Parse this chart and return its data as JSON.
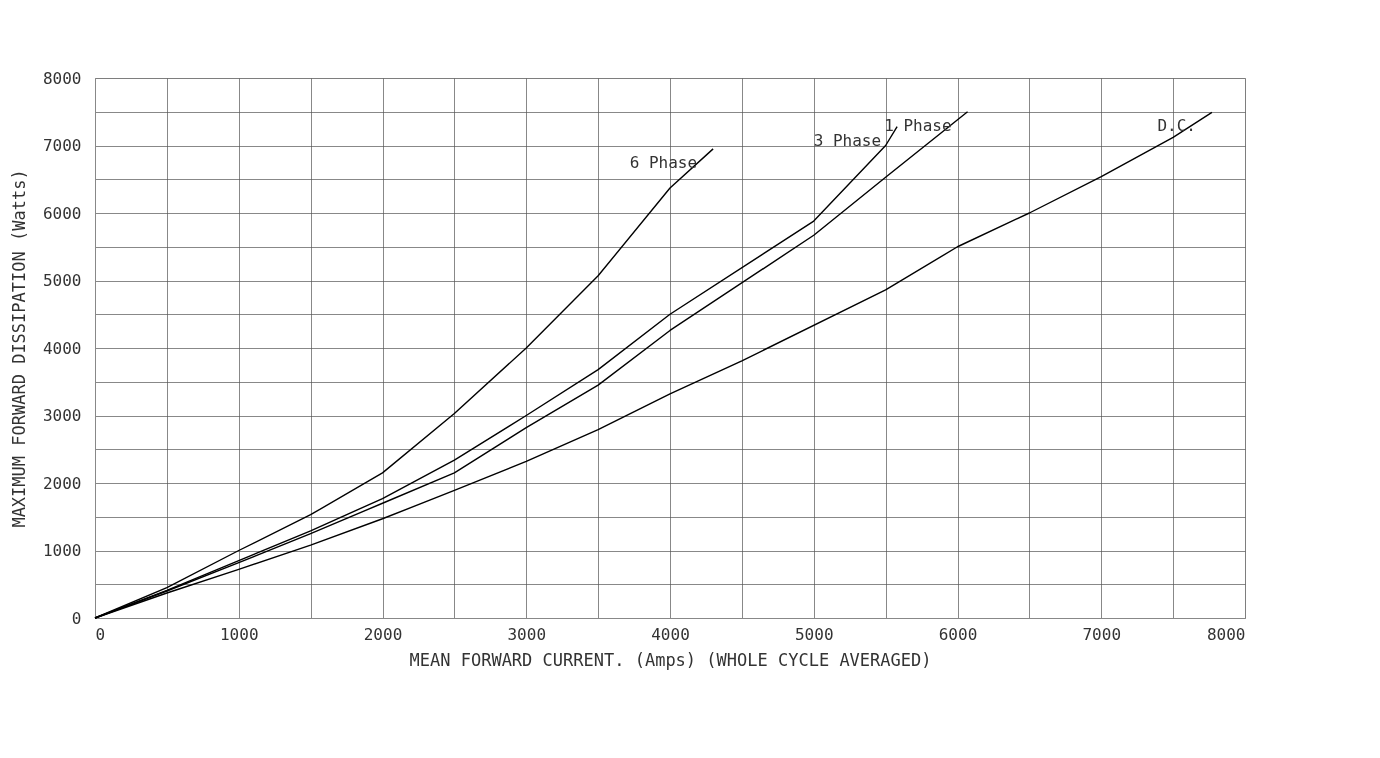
{
  "chart_data": {
    "type": "line",
    "xlabel": "MEAN FORWARD CURRENT.  (Amps)   (WHOLE CYCLE AVERAGED)",
    "ylabel": "MAXIMUM FORWARD DISSIPATION  (Watts)",
    "series": [
      {
        "name": "6 Phase",
        "color": "#000000",
        "x": [
          0,
          500,
          1000,
          1500,
          2000,
          2500,
          3000,
          3500,
          4000,
          4300
        ],
        "values": [
          0,
          450,
          1000,
          1530,
          2150,
          3030,
          4000,
          5070,
          6370,
          6950
        ]
      },
      {
        "name": "3 Phase",
        "color": "#000000",
        "x": [
          0,
          500,
          1000,
          1500,
          2000,
          2500,
          3000,
          3500,
          4000,
          5000,
          5500,
          5580
        ],
        "values": [
          0,
          410,
          850,
          1290,
          1770,
          2340,
          3000,
          3680,
          4500,
          5880,
          7000,
          7280
        ]
      },
      {
        "name": "1 Phase",
        "color": "#000000",
        "x": [
          0,
          500,
          1000,
          1500,
          2000,
          2500,
          3000,
          3500,
          4000,
          5000,
          5500,
          6070
        ],
        "values": [
          0,
          400,
          820,
          1250,
          1700,
          2150,
          2820,
          3450,
          4260,
          5670,
          6530,
          7500
        ]
      },
      {
        "name": "D.C.",
        "color": "#000000",
        "x": [
          0,
          500,
          1000,
          1500,
          2000,
          2500,
          3000,
          3500,
          4000,
          4500,
          5500,
          6000,
          6500,
          7000,
          7500,
          7770
        ],
        "values": [
          0,
          370,
          720,
          1080,
          1470,
          1890,
          2320,
          2790,
          3320,
          3810,
          4860,
          5500,
          6000,
          6540,
          7120,
          7490
        ]
      }
    ],
    "xlim": [
      0,
      8000
    ],
    "ylim": [
      0,
      8000
    ],
    "xticks": [
      0,
      {
        "value": 500,
        "label": null
      },
      1000,
      {
        "value": 1500,
        "label": null
      },
      2000,
      {
        "value": 2500,
        "label": null
      },
      3000,
      {
        "value": 3500,
        "label": null
      },
      4000,
      {
        "value": 4500,
        "label": null
      },
      5000,
      {
        "value": 5500,
        "label": null
      },
      6000,
      {
        "value": 6500,
        "label": null
      },
      7000,
      {
        "value": 7500,
        "label": null
      },
      8000
    ],
    "yticks": [
      0,
      {
        "value": 500,
        "label": null
      },
      1000,
      {
        "value": 1500,
        "label": null
      },
      2000,
      {
        "value": 2500,
        "label": null
      },
      3000,
      {
        "value": 3500,
        "label": null
      },
      4000,
      {
        "value": 4500,
        "label": null
      },
      5000,
      {
        "value": 5500,
        "label": null
      },
      6000,
      {
        "value": 6500,
        "label": null
      },
      7000,
      {
        "value": 7500,
        "label": null
      },
      8000
    ],
    "grid": true,
    "legend": false,
    "marker": "none",
    "line_style": "solid"
  }
}
